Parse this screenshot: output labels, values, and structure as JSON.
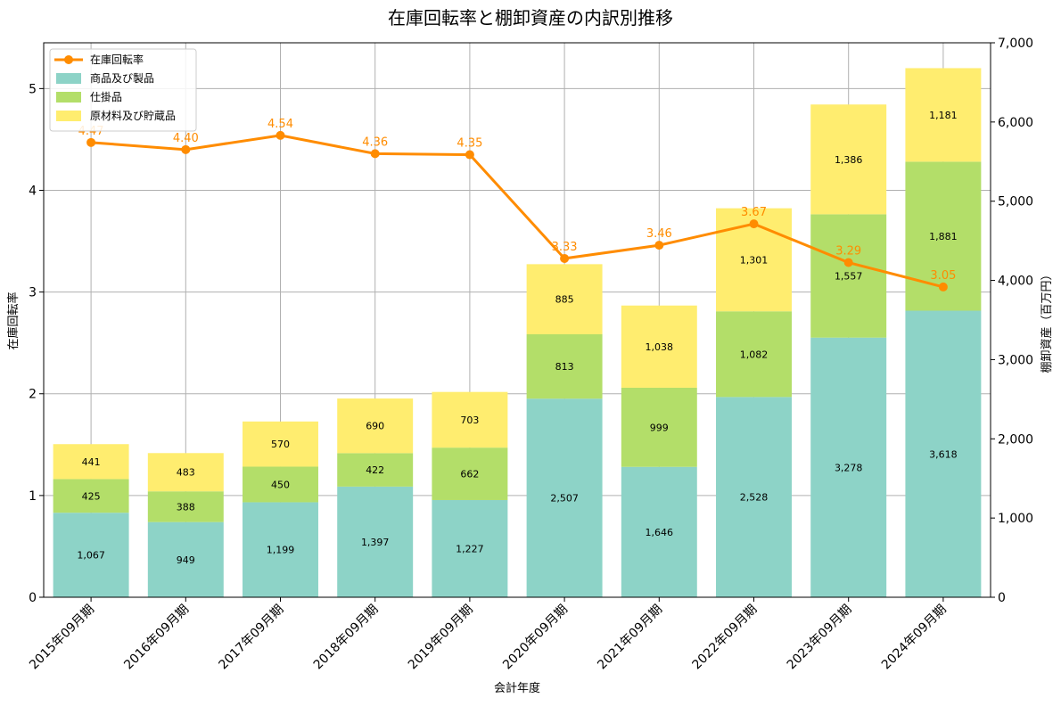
{
  "chart_data": {
    "type": "bar",
    "title": "在庫回転率と棚卸資産の内訳別推移",
    "xlabel": "会計年度",
    "ylabel_left": "在庫回転率",
    "ylabel_right": "棚卸資産（百万円）",
    "categories": [
      "2015年09月期",
      "2016年09月期",
      "2017年09月期",
      "2018年09月期",
      "2019年09月期",
      "2020年09月期",
      "2021年09月期",
      "2022年09月期",
      "2023年09月期",
      "2024年09月期"
    ],
    "bar_series": [
      {
        "name": "商品及び製品",
        "color": "#8dd3c7",
        "values": [
          1067,
          949,
          1199,
          1397,
          1227,
          2507,
          1646,
          2528,
          3278,
          3618
        ],
        "labels": [
          "1,067",
          "949",
          "1,199",
          "1,397",
          "1,227",
          "2,507",
          "1,646",
          "2,528",
          "3,278",
          "3,618"
        ]
      },
      {
        "name": "仕掛品",
        "color": "#b3de69",
        "values": [
          425,
          388,
          450,
          422,
          662,
          813,
          999,
          1082,
          1557,
          1881
        ],
        "labels": [
          "425",
          "388",
          "450",
          "422",
          "662",
          "813",
          "999",
          "1,082",
          "1,557",
          "1,881"
        ]
      },
      {
        "name": "原材料及び貯蔵品",
        "color": "#ffed6f",
        "values": [
          441,
          483,
          570,
          690,
          703,
          885,
          1038,
          1301,
          1386,
          1181
        ],
        "labels": [
          "441",
          "483",
          "570",
          "690",
          "703",
          "885",
          "1,038",
          "1,301",
          "1,386",
          "1,181"
        ]
      }
    ],
    "line_series": {
      "name": "在庫回転率",
      "color": "#ff8c00",
      "values": [
        4.47,
        4.4,
        4.54,
        4.36,
        4.35,
        3.33,
        3.46,
        3.67,
        3.29,
        3.05
      ],
      "labels": [
        "4.47",
        "4.40",
        "4.54",
        "4.36",
        "4.35",
        "3.33",
        "3.46",
        "3.67",
        "3.29",
        "3.05"
      ]
    },
    "y_left": {
      "min": 0,
      "max": 5.45,
      "ticks": [
        0,
        1,
        2,
        3,
        4,
        5
      ],
      "tick_labels": [
        "0",
        "1",
        "2",
        "3",
        "4",
        "5"
      ]
    },
    "y_right": {
      "min": 0,
      "max": 7000,
      "ticks": [
        0,
        1000,
        2000,
        3000,
        4000,
        5000,
        6000,
        7000
      ],
      "tick_labels": [
        "0",
        "1,000",
        "2,000",
        "3,000",
        "4,000",
        "5,000",
        "6,000",
        "7,000"
      ]
    },
    "grid": true,
    "legend_position": "top-left",
    "legend_order": [
      "line",
      0,
      1,
      2
    ]
  }
}
